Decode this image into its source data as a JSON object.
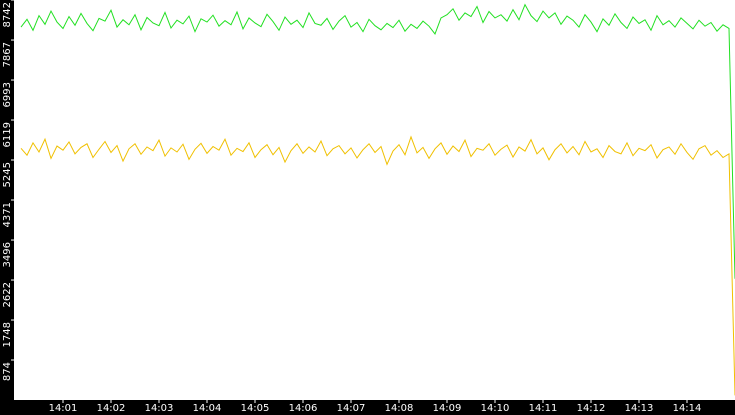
{
  "chart_data": {
    "type": "line",
    "x": [
      840.125,
      840.25,
      840.375,
      840.5,
      840.625,
      840.75,
      840.875,
      841,
      841.125,
      841.25,
      841.375,
      841.5,
      841.625,
      841.75,
      841.875,
      842,
      842.125,
      842.25,
      842.375,
      842.5,
      842.625,
      842.75,
      842.875,
      843,
      843.125,
      843.25,
      843.375,
      843.5,
      843.625,
      843.75,
      843.875,
      844,
      844.125,
      844.25,
      844.375,
      844.5,
      844.625,
      844.75,
      844.875,
      845,
      845.125,
      845.25,
      845.375,
      845.5,
      845.625,
      845.75,
      845.875,
      846,
      846.125,
      846.25,
      846.375,
      846.5,
      846.625,
      846.75,
      846.875,
      847,
      847.125,
      847.25,
      847.375,
      847.5,
      847.625,
      847.75,
      847.875,
      848,
      848.125,
      848.25,
      848.375,
      848.5,
      848.625,
      848.75,
      848.875,
      849,
      849.125,
      849.25,
      849.375,
      849.5,
      849.625,
      849.75,
      849.875,
      850,
      850.125,
      850.25,
      850.375,
      850.5,
      850.625,
      850.75,
      850.875,
      851,
      851.125,
      851.25,
      851.375,
      851.5,
      851.625,
      851.75,
      851.875,
      852,
      852.125,
      852.25,
      852.375,
      852.5,
      852.625,
      852.75,
      852.875,
      853,
      853.125,
      853.25,
      853.375,
      853.5,
      853.625,
      853.75,
      853.875,
      854,
      854.125,
      854.25,
      854.375,
      854.5,
      854.625,
      854.75,
      854.875,
      855
    ],
    "series": [
      {
        "color": "#22e022",
        "values": [
          8150,
          8320,
          8080,
          8400,
          8210,
          8500,
          8260,
          8120,
          8380,
          8190,
          8450,
          8230,
          8070,
          8340,
          8280,
          8520,
          8150,
          8310,
          8200,
          8420,
          8090,
          8360,
          8240,
          8180,
          8470,
          8130,
          8300,
          8220,
          8390,
          8050,
          8330,
          8260,
          8410,
          8170,
          8290,
          8200,
          8480,
          8110,
          8350,
          8240,
          8160,
          8430,
          8270,
          8080,
          8370,
          8210,
          8300,
          8140,
          8460,
          8230,
          8190,
          8340,
          8100,
          8280,
          8400,
          8150,
          8250,
          8050,
          8320,
          8180,
          8090,
          8230,
          8140,
          8300,
          8060,
          8210,
          8120,
          8280,
          8170,
          8000,
          8350,
          8420,
          8550,
          8300,
          8460,
          8380,
          8600,
          8250,
          8490,
          8350,
          8420,
          8280,
          8530,
          8310,
          8640,
          8400,
          8270,
          8500,
          8350,
          8460,
          8210,
          8390,
          8300,
          8150,
          8420,
          8260,
          8050,
          8330,
          8190,
          8440,
          8250,
          8120,
          8370,
          8230,
          8310,
          8080,
          8400,
          8200,
          8290,
          8150,
          8350,
          8230,
          8110,
          8300,
          8170,
          8250,
          8060,
          8200,
          8120,
          2650
        ]
      },
      {
        "color": "#f0c000",
        "values": [
          5500,
          5350,
          5620,
          5420,
          5700,
          5280,
          5550,
          5460,
          5640,
          5380,
          5520,
          5600,
          5300,
          5480,
          5650,
          5410,
          5560,
          5220,
          5490,
          5600,
          5370,
          5530,
          5450,
          5680,
          5330,
          5510,
          5420,
          5590,
          5260,
          5480,
          5610,
          5390,
          5540,
          5460,
          5700,
          5350,
          5500,
          5430,
          5620,
          5300,
          5470,
          5580,
          5360,
          5520,
          5200,
          5450,
          5600,
          5390,
          5530,
          5420,
          5660,
          5340,
          5490,
          5560,
          5380,
          5510,
          5290,
          5470,
          5600,
          5410,
          5540,
          5150,
          5440,
          5580,
          5360,
          5750,
          5400,
          5520,
          5280,
          5490,
          5620,
          5370,
          5550,
          5430,
          5680,
          5320,
          5500,
          5460,
          5600,
          5350,
          5480,
          5570,
          5310,
          5530,
          5440,
          5690,
          5380,
          5510,
          5250,
          5470,
          5600,
          5400,
          5540,
          5360,
          5650,
          5420,
          5490,
          5300,
          5560,
          5430,
          5380,
          5620,
          5340,
          5500,
          5450,
          5580,
          5290,
          5470,
          5530,
          5370,
          5600,
          5410,
          5260,
          5490,
          5560,
          5350,
          5450,
          5300,
          5380,
          100
        ]
      }
    ],
    "xlim": [
      840,
      855
    ],
    "xticks": [
      {
        "value": 841,
        "label": "14:01"
      },
      {
        "value": 842,
        "label": "14:02"
      },
      {
        "value": 843,
        "label": "14:03"
      },
      {
        "value": 844,
        "label": "14:04"
      },
      {
        "value": 845,
        "label": "14:05"
      },
      {
        "value": 846,
        "label": "14:06"
      },
      {
        "value": 847,
        "label": "14:07"
      },
      {
        "value": 848,
        "label": "14:08"
      },
      {
        "value": 849,
        "label": "14:09"
      },
      {
        "value": 850,
        "label": "14:10"
      },
      {
        "value": 851,
        "label": "14:11"
      },
      {
        "value": 852,
        "label": "14:12"
      },
      {
        "value": 853,
        "label": "14:13"
      },
      {
        "value": 854,
        "label": "14:14"
      }
    ],
    "ylim": [
      0,
      8742
    ],
    "yticks": [
      874,
      1748,
      2622,
      3496,
      4371,
      5245,
      6119,
      6993,
      7867,
      8742
    ],
    "axis_background": "#000000"
  }
}
